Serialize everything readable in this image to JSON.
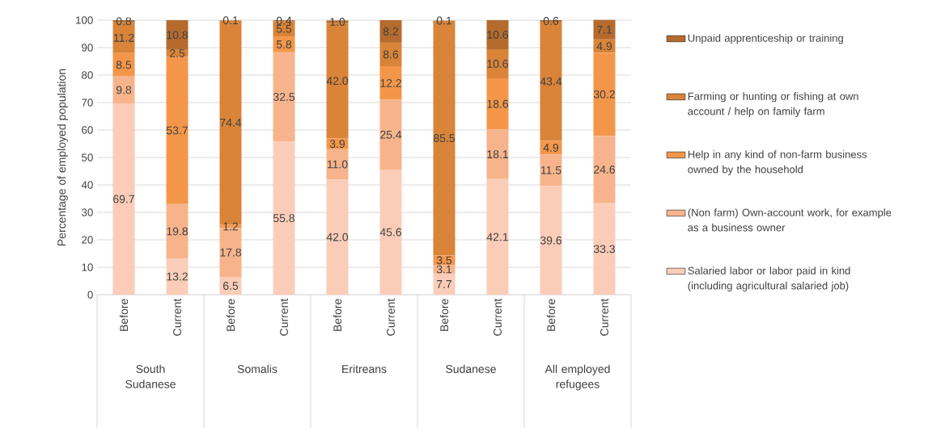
{
  "chart_data": {
    "type": "bar",
    "stacked": true,
    "ylabel": "Percentage of employed population",
    "categories": [
      "Before",
      "Current",
      "Before",
      "Current",
      "Before",
      "Current",
      "Before",
      "Current",
      "Before",
      "Current"
    ],
    "annotations": [
      "South Sudanese",
      "Somalis",
      "Eritreans",
      "Sudanese",
      "All employed refugees"
    ],
    "series": [
      {
        "name": "Salaried labor or labor paid in kind (including agricultural salaried job)",
        "color": "#fbcdb8",
        "values": [
          69.7,
          13.2,
          6.5,
          55.8,
          42.0,
          45.6,
          7.7,
          42.1,
          39.6,
          33.3
        ],
        "value_labels": [
          "69.7",
          "13.2",
          "6.5",
          "55.8",
          "42.0",
          "45.6",
          "7.7",
          "42.1",
          "39.6",
          "33.3"
        ]
      },
      {
        "name": "(Non farm) Own-account work, for example as a business owner",
        "color": "#f7b48c",
        "values": [
          9.8,
          19.8,
          17.8,
          32.5,
          11.0,
          25.4,
          3.1,
          18.1,
          11.5,
          24.6
        ],
        "value_labels": [
          "9.8",
          "19.8",
          "17.8",
          "32.5",
          "11.0",
          "25.4",
          "3.1",
          "18.1",
          "11.5",
          "24.6"
        ]
      },
      {
        "name": "Help in any kind of non-farm business owned by the household",
        "color": "#f4964a",
        "values": [
          8.5,
          53.7,
          1.2,
          5.8,
          3.9,
          12.2,
          3.5,
          18.6,
          4.9,
          30.2
        ],
        "value_labels": [
          "8.5",
          "53.7",
          "1.2",
          "5.8",
          "3.9",
          "12.2",
          "3.5",
          "18.6",
          "4.9",
          "30.2"
        ]
      },
      {
        "name": "Farming or hunting or fishing at own account / help on family farm",
        "color": "#d98438",
        "values": [
          11.2,
          2.5,
          74.4,
          5.5,
          42.0,
          8.6,
          85.5,
          10.6,
          43.4,
          4.9
        ],
        "value_labels": [
          "11.2",
          "2.5",
          "74.4",
          "5.5",
          "42.0",
          "8.6",
          "85.5",
          "10.6",
          "43.4",
          "4.9"
        ]
      },
      {
        "name": "Unpaid apprenticeship or training",
        "color": "#b56b2e",
        "values": [
          0.8,
          10.8,
          0.1,
          0.4,
          1.0,
          8.2,
          0.1,
          10.6,
          0.6,
          7.1
        ],
        "value_labels": [
          "0.8",
          "10.8",
          "0.1",
          "0.4",
          "1.0",
          "8.2",
          "0.1",
          "10.6",
          "0.6",
          "7.1"
        ]
      }
    ],
    "ylim": [
      0,
      100
    ],
    "yticks": [
      0,
      10,
      20,
      30,
      40,
      50,
      60,
      70,
      80,
      90,
      100
    ],
    "grid": "y",
    "legend": "right"
  }
}
